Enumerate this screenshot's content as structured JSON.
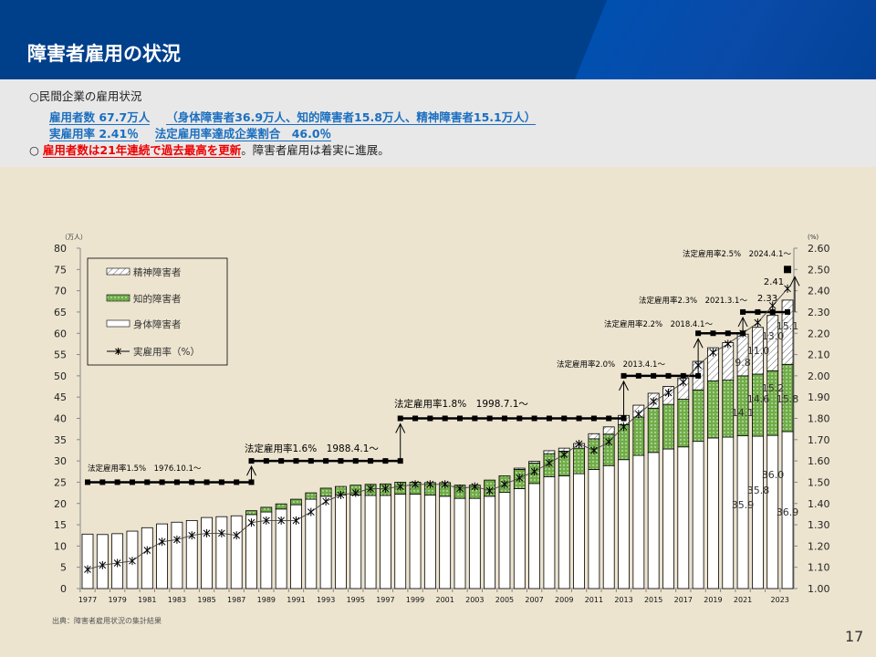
{
  "header": {
    "title": "障害者雇用の状況"
  },
  "summary": {
    "line1": "○民間企業の雇用状況",
    "employed": "雇用者数 67.7万人",
    "breakdown": "（身体障害者36.9万人、知的障害者15.8万人、精神障害者15.1万人）",
    "actual_rate": "実雇用率 2.41％",
    "achieve_rate": "法定雇用率達成企業割合　46.0％",
    "bullet": "○ ",
    "highlight": "雇用者数は21年連続で過去最高を更新",
    "rest": "。障害者雇用は着実に進展。"
  },
  "footer": {
    "source": "出典：障害者雇用状況の集計結果",
    "page": "17"
  },
  "colors": {
    "header": "#003f8a",
    "intellectual": "#70ad47",
    "accent_blue": "#1a6fc0",
    "red": "#e00000"
  },
  "chart_data": {
    "type": "bar",
    "stacked": true,
    "left_unit": "（万人）",
    "right_unit": "(%)",
    "ylim": [
      0,
      80
    ],
    "y2lim": [
      1.0,
      2.6
    ],
    "yticks": [
      0,
      5,
      10,
      15,
      20,
      25,
      30,
      35,
      40,
      45,
      50,
      55,
      60,
      65,
      70,
      75,
      80
    ],
    "y2ticks": [
      "1.00",
      "1.10",
      "1.20",
      "1.30",
      "1.40",
      "1.50",
      "1.60",
      "1.70",
      "1.80",
      "1.90",
      "2.00",
      "2.10",
      "2.20",
      "2.30",
      "2.40",
      "2.50",
      "2.60"
    ],
    "years": [
      1977,
      1978,
      1979,
      1980,
      1981,
      1982,
      1983,
      1984,
      1985,
      1986,
      1987,
      1988,
      1989,
      1990,
      1991,
      1992,
      1993,
      1994,
      1995,
      1996,
      1997,
      1998,
      1999,
      2000,
      2001,
      2002,
      2003,
      2004,
      2005,
      2006,
      2007,
      2008,
      2009,
      2010,
      2011,
      2012,
      2013,
      2014,
      2015,
      2016,
      2017,
      2018,
      2019,
      2020,
      2021,
      2022,
      2023,
      2024
    ],
    "xtick_labels": [
      "1977",
      "1979",
      "1981",
      "1983",
      "1985",
      "1987",
      "1989",
      "1991",
      "1993",
      "1995",
      "1997",
      "1999",
      "2001",
      "2003",
      "2005",
      "2007",
      "2009",
      "2011",
      "2013",
      "2015",
      "2017",
      "2019",
      "2021",
      "2023"
    ],
    "legend": [
      "精神障害者",
      "知的障害者",
      "身体障害者",
      "実雇用率（%）"
    ],
    "series": [
      {
        "name": "身体障害者",
        "values": [
          12.8,
          12.7,
          12.9,
          13.5,
          14.3,
          15.2,
          15.6,
          16.0,
          16.7,
          16.9,
          17.1,
          17.4,
          18.0,
          18.7,
          19.7,
          21.0,
          21.7,
          22.0,
          22.0,
          21.9,
          21.9,
          22.2,
          22.2,
          22.0,
          21.7,
          21.2,
          21.2,
          21.7,
          22.6,
          23.5,
          24.7,
          26.3,
          26.5,
          27.0,
          28.0,
          28.9,
          30.3,
          31.3,
          32.0,
          32.8,
          33.3,
          34.6,
          35.4,
          35.6,
          35.9,
          35.8,
          36.0,
          36.9
        ]
      },
      {
        "name": "知的障害者",
        "values": [
          0,
          0,
          0,
          0,
          0,
          0,
          0,
          0,
          0,
          0,
          0,
          0.9,
          1.1,
          1.2,
          1.3,
          1.5,
          1.9,
          2.0,
          2.3,
          2.6,
          2.7,
          2.8,
          2.8,
          2.9,
          3.2,
          3.1,
          3.1,
          3.8,
          3.9,
          4.5,
          4.8,
          5.4,
          5.8,
          6.0,
          7.2,
          7.4,
          8.2,
          9.0,
          10.4,
          10.5,
          11.2,
          12.1,
          13.4,
          13.4,
          14.1,
          14.6,
          15.2,
          15.8
        ]
      },
      {
        "name": "精神障害者",
        "values": [
          0,
          0,
          0,
          0,
          0,
          0,
          0,
          0,
          0,
          0,
          0,
          0,
          0,
          0,
          0,
          0,
          0,
          0,
          0,
          0,
          0,
          0,
          0,
          0,
          0,
          0,
          0,
          0,
          0,
          0.3,
          0.4,
          0.7,
          0.7,
          1.1,
          1.2,
          1.7,
          2.2,
          2.8,
          3.5,
          4.2,
          5.0,
          6.7,
          7.8,
          8.8,
          9.8,
          11.0,
          13.0,
          15.1
        ]
      },
      {
        "name": "実雇用率（%）",
        "axis": "right",
        "values": [
          1.09,
          1.11,
          1.12,
          1.13,
          1.18,
          1.22,
          1.23,
          1.25,
          1.26,
          1.26,
          1.25,
          1.31,
          1.32,
          1.32,
          1.32,
          1.36,
          1.41,
          1.44,
          1.45,
          1.47,
          1.47,
          1.48,
          1.49,
          1.49,
          1.49,
          1.47,
          1.48,
          1.46,
          1.49,
          1.52,
          1.55,
          1.59,
          1.63,
          1.68,
          1.65,
          1.69,
          1.76,
          1.82,
          1.88,
          1.92,
          1.97,
          2.05,
          2.11,
          2.15,
          2.2,
          2.25,
          2.33,
          2.41
        ]
      }
    ],
    "legal_rate": [
      {
        "rate": 1.5,
        "from": 1977,
        "to": 1988,
        "label": "法定雇用率1.5%　1976.10.1～"
      },
      {
        "rate": 1.6,
        "from": 1988,
        "to": 1998,
        "label": "法定雇用率1.6%　1988.4.1～"
      },
      {
        "rate": 1.8,
        "from": 1998,
        "to": 2013,
        "label": "法定雇用率1.8%　1998.7.1～"
      },
      {
        "rate": 2.0,
        "from": 2013,
        "to": 2018,
        "label": "法定雇用率2.0%　2013.4.1～"
      },
      {
        "rate": 2.2,
        "from": 2018,
        "to": 2021,
        "label": "法定雇用率2.2%　2018.4.1～"
      },
      {
        "rate": 2.3,
        "from": 2021,
        "to": 2024,
        "label": "法定雇用率2.3%　2021.3.1～"
      },
      {
        "rate": 2.5,
        "from": 2024,
        "to": 2024,
        "label": "法定雇用率2.5%　2024.4.1～"
      }
    ],
    "data_labels": {
      "body": [
        "35.9",
        "35.8",
        "36.0",
        "36.9"
      ],
      "intellectual": [
        "14.1",
        "14.6",
        "15.2",
        "15.8"
      ],
      "mental": [
        "9.8",
        "11.0",
        "13.0",
        "15.1"
      ],
      "rate": [
        "2.33",
        "2.41"
      ]
    }
  }
}
